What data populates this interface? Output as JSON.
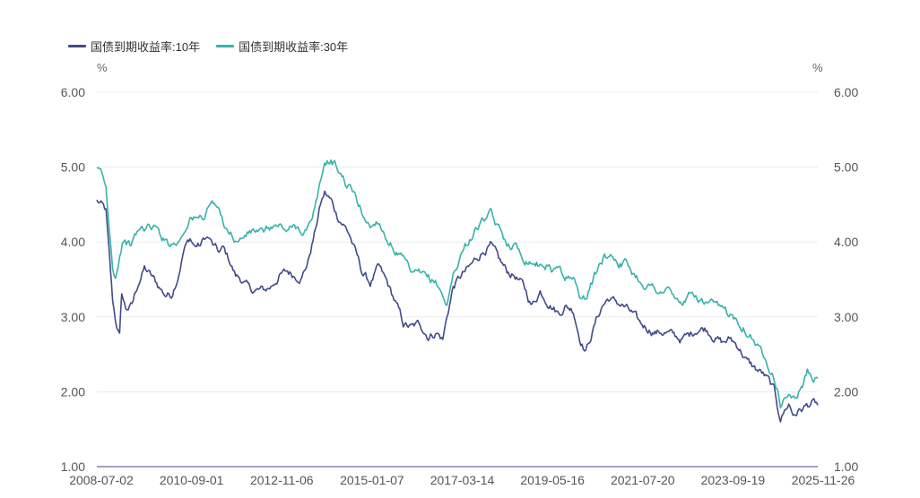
{
  "chart_data": {
    "type": "line",
    "title": "",
    "xlabel": "",
    "ylabel": "%",
    "y2label": "%",
    "ylim": [
      1.0,
      6.0
    ],
    "y_ticks": [
      "1.00",
      "2.00",
      "3.00",
      "4.00",
      "5.00",
      "6.00"
    ],
    "x_ticks": [
      "2008-07-02",
      "2010-09-01",
      "2012-11-06",
      "2015-01-07",
      "2017-03-14",
      "2019-05-16",
      "2021-07-20",
      "2023-09-19",
      "2025-11-26"
    ],
    "x_range": [
      2008.5,
      2025.9
    ],
    "grid": true,
    "legend_position": "top-left",
    "series": [
      {
        "name": "国债到期收益率:10年",
        "color": "#414a8a",
        "x": [
          2008.5,
          2008.6,
          2008.72,
          2008.8,
          2008.88,
          2008.95,
          2009.05,
          2009.1,
          2009.2,
          2009.35,
          2009.5,
          2009.65,
          2009.8,
          2010.0,
          2010.15,
          2010.3,
          2010.45,
          2010.6,
          2010.75,
          2010.85,
          2011.0,
          2011.1,
          2011.2,
          2011.3,
          2011.45,
          2011.55,
          2011.7,
          2011.85,
          2012.0,
          2012.2,
          2012.4,
          2012.55,
          2012.7,
          2012.9,
          2013.1,
          2013.3,
          2013.45,
          2013.6,
          2013.75,
          2013.9,
          2014.0,
          2014.15,
          2014.3,
          2014.45,
          2014.6,
          2014.75,
          2014.9,
          2015.1,
          2015.3,
          2015.5,
          2015.7,
          2015.9,
          2016.1,
          2016.3,
          2016.5,
          2016.7,
          2016.85,
          2016.95,
          2017.1,
          2017.3,
          2017.5,
          2017.7,
          2017.85,
          2018.0,
          2018.2,
          2018.4,
          2018.6,
          2018.8,
          2019.0,
          2019.2,
          2019.35,
          2019.5,
          2019.65,
          2019.8,
          2020.0,
          2020.15,
          2020.3,
          2020.4,
          2020.55,
          2020.7,
          2020.85,
          2021.0,
          2021.2,
          2021.4,
          2021.6,
          2021.8,
          2022.0,
          2022.2,
          2022.4,
          2022.6,
          2022.8,
          2023.0,
          2023.2,
          2023.4,
          2023.6,
          2023.8,
          2024.0,
          2024.2,
          2024.4,
          2024.55,
          2024.7,
          2024.85,
          2024.92,
          2025.0,
          2025.1,
          2025.2,
          2025.3,
          2025.45,
          2025.6,
          2025.75,
          2025.9
        ],
        "values": [
          4.55,
          4.5,
          4.4,
          3.8,
          3.2,
          2.95,
          2.75,
          3.3,
          3.1,
          3.15,
          3.45,
          3.65,
          3.55,
          3.4,
          3.3,
          3.3,
          3.55,
          3.9,
          4.05,
          3.95,
          3.95,
          4.05,
          4.05,
          3.95,
          3.85,
          3.9,
          3.75,
          3.55,
          3.5,
          3.35,
          3.35,
          3.35,
          3.4,
          3.55,
          3.6,
          3.55,
          3.55,
          3.75,
          4.1,
          4.5,
          4.65,
          4.55,
          4.35,
          4.25,
          4.1,
          3.85,
          3.6,
          3.45,
          3.65,
          3.45,
          3.2,
          2.9,
          2.85,
          2.9,
          2.75,
          2.8,
          2.7,
          3.0,
          3.4,
          3.55,
          3.65,
          3.8,
          3.9,
          3.95,
          3.75,
          3.6,
          3.55,
          3.4,
          3.15,
          3.35,
          3.25,
          3.15,
          3.05,
          3.15,
          3.1,
          2.75,
          2.55,
          2.7,
          2.95,
          3.15,
          3.25,
          3.2,
          3.15,
          3.05,
          2.9,
          2.85,
          2.8,
          2.8,
          2.75,
          2.7,
          2.75,
          2.85,
          2.85,
          2.75,
          2.65,
          2.7,
          2.6,
          2.4,
          2.3,
          2.25,
          2.15,
          2.0,
          1.8,
          1.65,
          1.75,
          1.85,
          1.7,
          1.75,
          1.8,
          1.85,
          1.82
        ]
      },
      {
        "name": "国债到期收益率:30年",
        "color": "#38b2a8",
        "x": [
          2008.5,
          2008.62,
          2008.72,
          2008.8,
          2008.88,
          2008.95,
          2009.05,
          2009.15,
          2009.3,
          2009.5,
          2009.7,
          2009.9,
          2010.1,
          2010.3,
          2010.45,
          2010.6,
          2010.75,
          2010.9,
          2011.1,
          2011.25,
          2011.4,
          2011.55,
          2011.7,
          2011.9,
          2012.1,
          2012.3,
          2012.5,
          2012.7,
          2012.9,
          2013.1,
          2013.3,
          2013.5,
          2013.7,
          2013.85,
          2014.0,
          2014.15,
          2014.3,
          2014.5,
          2014.7,
          2014.9,
          2015.1,
          2015.3,
          2015.5,
          2015.7,
          2015.9,
          2016.1,
          2016.3,
          2016.5,
          2016.7,
          2016.85,
          2016.95,
          2017.1,
          2017.3,
          2017.5,
          2017.7,
          2017.85,
          2018.0,
          2018.2,
          2018.4,
          2018.6,
          2018.8,
          2019.0,
          2019.2,
          2019.35,
          2019.5,
          2019.65,
          2019.8,
          2020.0,
          2020.15,
          2020.3,
          2020.45,
          2020.6,
          2020.75,
          2020.9,
          2021.1,
          2021.3,
          2021.5,
          2021.7,
          2021.9,
          2022.1,
          2022.3,
          2022.5,
          2022.7,
          2022.9,
          2023.1,
          2023.3,
          2023.5,
          2023.7,
          2023.9,
          2024.1,
          2024.3,
          2024.5,
          2024.65,
          2024.8,
          2024.92,
          2025.0,
          2025.1,
          2025.2,
          2025.35,
          2025.5,
          2025.65,
          2025.8,
          2025.9
        ],
        "values": [
          4.95,
          4.9,
          4.7,
          4.2,
          3.7,
          3.55,
          3.85,
          4.05,
          3.95,
          4.15,
          4.2,
          4.2,
          4.05,
          4.0,
          4.0,
          4.15,
          4.35,
          4.3,
          4.35,
          4.55,
          4.45,
          4.25,
          4.15,
          4.0,
          4.1,
          4.15,
          4.1,
          4.2,
          4.2,
          4.15,
          4.2,
          4.15,
          4.25,
          4.65,
          5.05,
          5.1,
          5.0,
          4.8,
          4.65,
          4.4,
          4.2,
          4.3,
          4.05,
          3.9,
          3.75,
          3.55,
          3.55,
          3.5,
          3.45,
          3.3,
          3.15,
          3.55,
          3.85,
          4.05,
          4.2,
          4.3,
          4.35,
          4.15,
          4.0,
          3.95,
          3.8,
          3.75,
          3.7,
          3.7,
          3.6,
          3.7,
          3.55,
          3.5,
          3.3,
          3.25,
          3.45,
          3.65,
          3.8,
          3.85,
          3.75,
          3.7,
          3.55,
          3.45,
          3.4,
          3.35,
          3.35,
          3.2,
          3.2,
          3.3,
          3.2,
          3.15,
          3.1,
          3.05,
          3.0,
          2.9,
          2.75,
          2.55,
          2.45,
          2.3,
          2.1,
          1.85,
          1.9,
          2.0,
          1.9,
          2.05,
          2.25,
          2.15,
          2.18
        ]
      }
    ]
  }
}
